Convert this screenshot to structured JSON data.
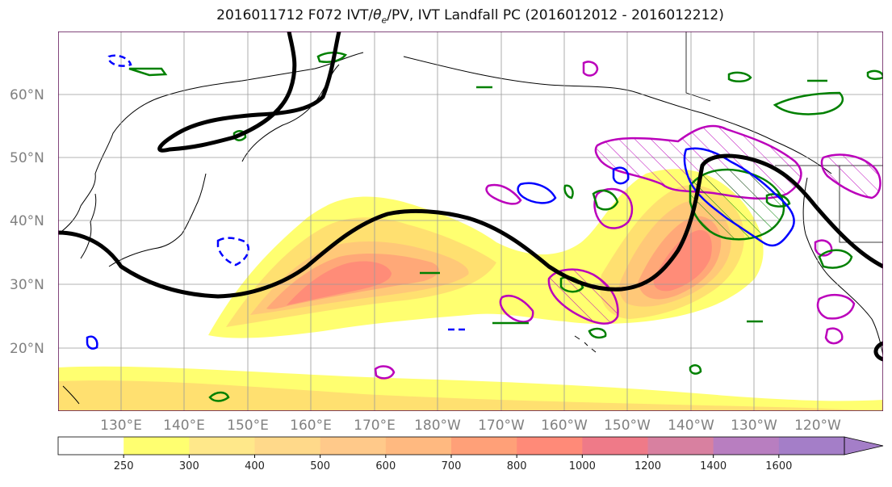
{
  "title": {
    "prefix": "2016011712 F072 IVT/",
    "theta": "θ",
    "theta_sub": "e",
    "suffix": "/PV, IVT Landfall PC (2016012012 - 2016012212)"
  },
  "axes": {
    "lat_labels": [
      "60°N",
      "50°N",
      "40°N",
      "30°N",
      "20°N"
    ],
    "lon_labels": [
      "130°E",
      "140°E",
      "150°E",
      "160°E",
      "170°E",
      "180°W",
      "170°W",
      "160°W",
      "150°W",
      "140°W",
      "130°W",
      "120°W"
    ]
  },
  "colorbar": {
    "levels": [
      "250",
      "300",
      "400",
      "500",
      "600",
      "700",
      "800",
      "1000",
      "1200",
      "1400",
      "1600"
    ],
    "colors": [
      "#ffffff",
      "#ffff70",
      "#ffe88a",
      "#ffd98a",
      "#ffc98a",
      "#ffb980",
      "#ffa078",
      "#ff8a78",
      "#ef7a88",
      "#d880a0",
      "#b87ec0",
      "#a47ec8"
    ],
    "extend": "max"
  },
  "map_features": {
    "ivt_fill_colors": [
      "#ffff70",
      "#ffe070",
      "#ffc878",
      "#ffa878",
      "#ff8c78"
    ],
    "pv_contour_color": "#000000",
    "theta_e_pos_color": "#008000",
    "theta_e_neg_color": "#0000ff",
    "landfall_pc_color": "#bb00bb",
    "grid": true
  }
}
